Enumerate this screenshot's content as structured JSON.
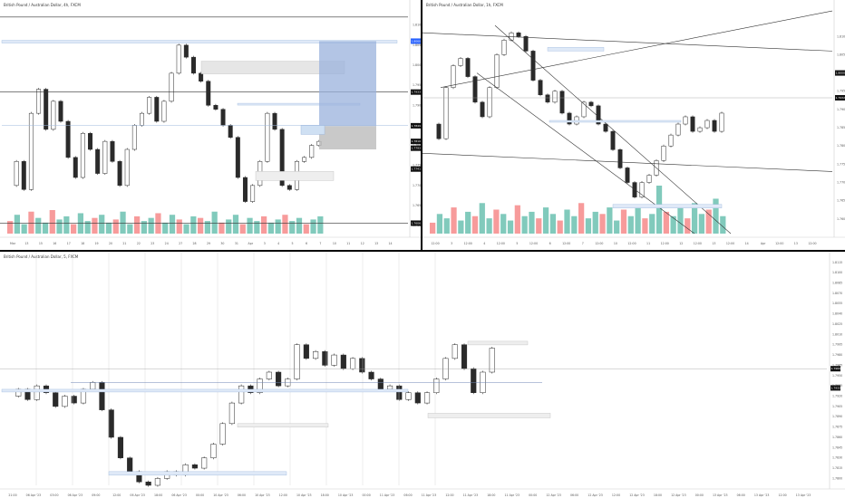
{
  "chart_data": [
    {
      "type": "candlestick",
      "title": "British Pound / Australian Dollar, 4h, FXCM",
      "ylim": [
        1.758,
        1.814
      ],
      "y_ticks": [
        "1.8100",
        "1.8050",
        "1.8000",
        "1.7950",
        "1.7900",
        "1.7850",
        "1.7800",
        "1.7750",
        "1.7700",
        "1.7650",
        "1.7600"
      ],
      "x_ticks": [
        "Mar",
        "13",
        "15",
        "16",
        "17",
        "18",
        "19",
        "20",
        "21",
        "22",
        "23",
        "24",
        "27",
        "28",
        "29",
        "30",
        "31",
        "Apr",
        "3",
        "4",
        "5",
        "6",
        "7",
        "10",
        "11",
        "12",
        "13",
        "14"
      ],
      "close_path": [
        1.77,
        1.776,
        1.769,
        1.788,
        1.794,
        1.784,
        1.791,
        1.786,
        1.777,
        1.772,
        1.783,
        1.779,
        1.773,
        1.781,
        1.776,
        1.77,
        1.779,
        1.785,
        1.788,
        1.792,
        1.786,
        1.791,
        1.798,
        1.805,
        1.802,
        1.798,
        1.796,
        1.79,
        1.789,
        1.785,
        1.782,
        1.772,
        1.766,
        1.77,
        1.776,
        1.788,
        1.784,
        1.77,
        1.769,
        1.776,
        1.777,
        1.78,
        1.781
      ],
      "price_labels": [
        "1.8060",
        "1.7933",
        "1.7849",
        "1.7810",
        "1.7793",
        "1.7741",
        "1.7606"
      ],
      "volume": [
        8,
        12,
        6,
        14,
        10,
        7,
        15,
        9,
        11,
        6,
        13,
        8,
        10,
        12,
        7,
        9,
        14,
        6,
        11,
        8,
        10,
        13,
        7,
        12,
        9,
        6,
        11,
        10,
        8,
        14,
        7,
        9,
        12,
        6,
        10,
        8,
        11,
        7,
        9,
        12,
        8,
        10,
        6,
        9,
        11
      ]
    },
    {
      "type": "candlestick",
      "title": "British Pound / Australian Dollar, 1h, FXCM",
      "ylim": [
        1.756,
        1.818
      ],
      "y_ticks": [
        "1.8100",
        "1.8050",
        "1.8000",
        "1.7950",
        "1.7900",
        "1.7850",
        "1.7800",
        "1.7750",
        "1.7700",
        "1.7650",
        "1.7600"
      ],
      "x_ticks": [
        "12:00",
        "3",
        "12:00",
        "4",
        "12:00",
        "5",
        "12:00",
        "6",
        "12:00",
        "7",
        "12:00",
        "10",
        "12:00",
        "11",
        "12:00",
        "12",
        "12:00",
        "13",
        "12:00",
        "14",
        "Apr",
        "12:00",
        "13",
        "12:00"
      ],
      "close_path": [
        1.786,
        1.782,
        1.796,
        1.802,
        1.804,
        1.799,
        1.792,
        1.788,
        1.796,
        1.805,
        1.809,
        1.811,
        1.81,
        1.806,
        1.798,
        1.794,
        1.792,
        1.795,
        1.789,
        1.786,
        1.788,
        1.792,
        1.791,
        1.786,
        1.784,
        1.779,
        1.774,
        1.77,
        1.766,
        1.77,
        1.772,
        1.776,
        1.78,
        1.783,
        1.786,
        1.788,
        1.784,
        1.785,
        1.787,
        1.784,
        1.789
      ],
      "price_labels": [
        "1.8000",
        "1.7932"
      ],
      "volume": [
        5,
        9,
        7,
        12,
        6,
        10,
        8,
        14,
        7,
        11,
        9,
        6,
        13,
        8,
        10,
        7,
        12,
        9,
        6,
        11,
        8,
        14,
        7,
        10,
        9,
        12,
        6,
        11,
        8,
        13,
        7,
        9,
        22,
        10,
        8,
        12,
        7,
        14,
        9,
        11,
        16,
        8
      ]
    },
    {
      "type": "candlestick",
      "title": "British Pound / Australian Dollar, 5, FXCM",
      "ylim": [
        1.779,
        1.812
      ],
      "y_ticks": [
        "1.8115",
        "1.8100",
        "1.8085",
        "1.8070",
        "1.8055",
        "1.8040",
        "1.8025",
        "1.8010",
        "1.7995",
        "1.7980",
        "1.7965",
        "1.7950",
        "1.7935",
        "1.7920",
        "1.7905",
        "1.7890",
        "1.7875",
        "1.7860",
        "1.7845",
        "1.7830",
        "1.7815",
        "1.7800"
      ],
      "x_ticks": [
        "21:00",
        "06 Apr '23",
        "03:00",
        "06 Apr '23",
        "09:00",
        "12:00",
        "06 Apr '23",
        "18:00",
        "06 Apr '23",
        "00:00",
        "10 Apr '23",
        "06:00",
        "10 Apr '23",
        "12:00",
        "10 Apr '23",
        "18:00",
        "10 Apr '23",
        "00:00",
        "11 Apr '23",
        "06:00",
        "11 Apr '23",
        "12:00",
        "11 Apr '23",
        "18:00",
        "11 Apr '23",
        "00:00",
        "12 Apr '23",
        "06:00",
        "12 Apr '23",
        "12:00",
        "12 Apr '23",
        "18:00",
        "12 Apr '23",
        "00:00",
        "13 Apr '23",
        "06:00",
        "13 Apr '23",
        "12:00",
        "13 Apr '23"
      ],
      "close_path": [
        1.792,
        1.793,
        1.7915,
        1.7935,
        1.7925,
        1.7905,
        1.792,
        1.791,
        1.793,
        1.794,
        1.79,
        1.786,
        1.783,
        1.781,
        1.7795,
        1.779,
        1.78,
        1.781,
        1.7805,
        1.782,
        1.7815,
        1.783,
        1.785,
        1.788,
        1.791,
        1.7935,
        1.7925,
        1.7945,
        1.7955,
        1.7935,
        1.7945,
        1.7995,
        1.7975,
        1.7985,
        1.7965,
        1.798,
        1.796,
        1.7975,
        1.7955,
        1.7945,
        1.793,
        1.7935,
        1.7915,
        1.7925,
        1.791,
        1.7925,
        1.7945,
        1.7975,
        1.7995,
        1.796,
        1.7925,
        1.7955,
        1.799
      ],
      "price_labels": [
        "1.7960",
        "1.7932"
      ],
      "volume": []
    }
  ],
  "colors": {
    "up": "#2a2a2a",
    "down": "#2a2a2a",
    "vol_up": "#57b8a6",
    "vol_down": "#f47a7a",
    "zone": "#9fb9de",
    "zone_fill": "#dfe9f7",
    "gray_zone": "#d9d9d9",
    "line": "#333333",
    "blue_tag": "#2962ff"
  }
}
